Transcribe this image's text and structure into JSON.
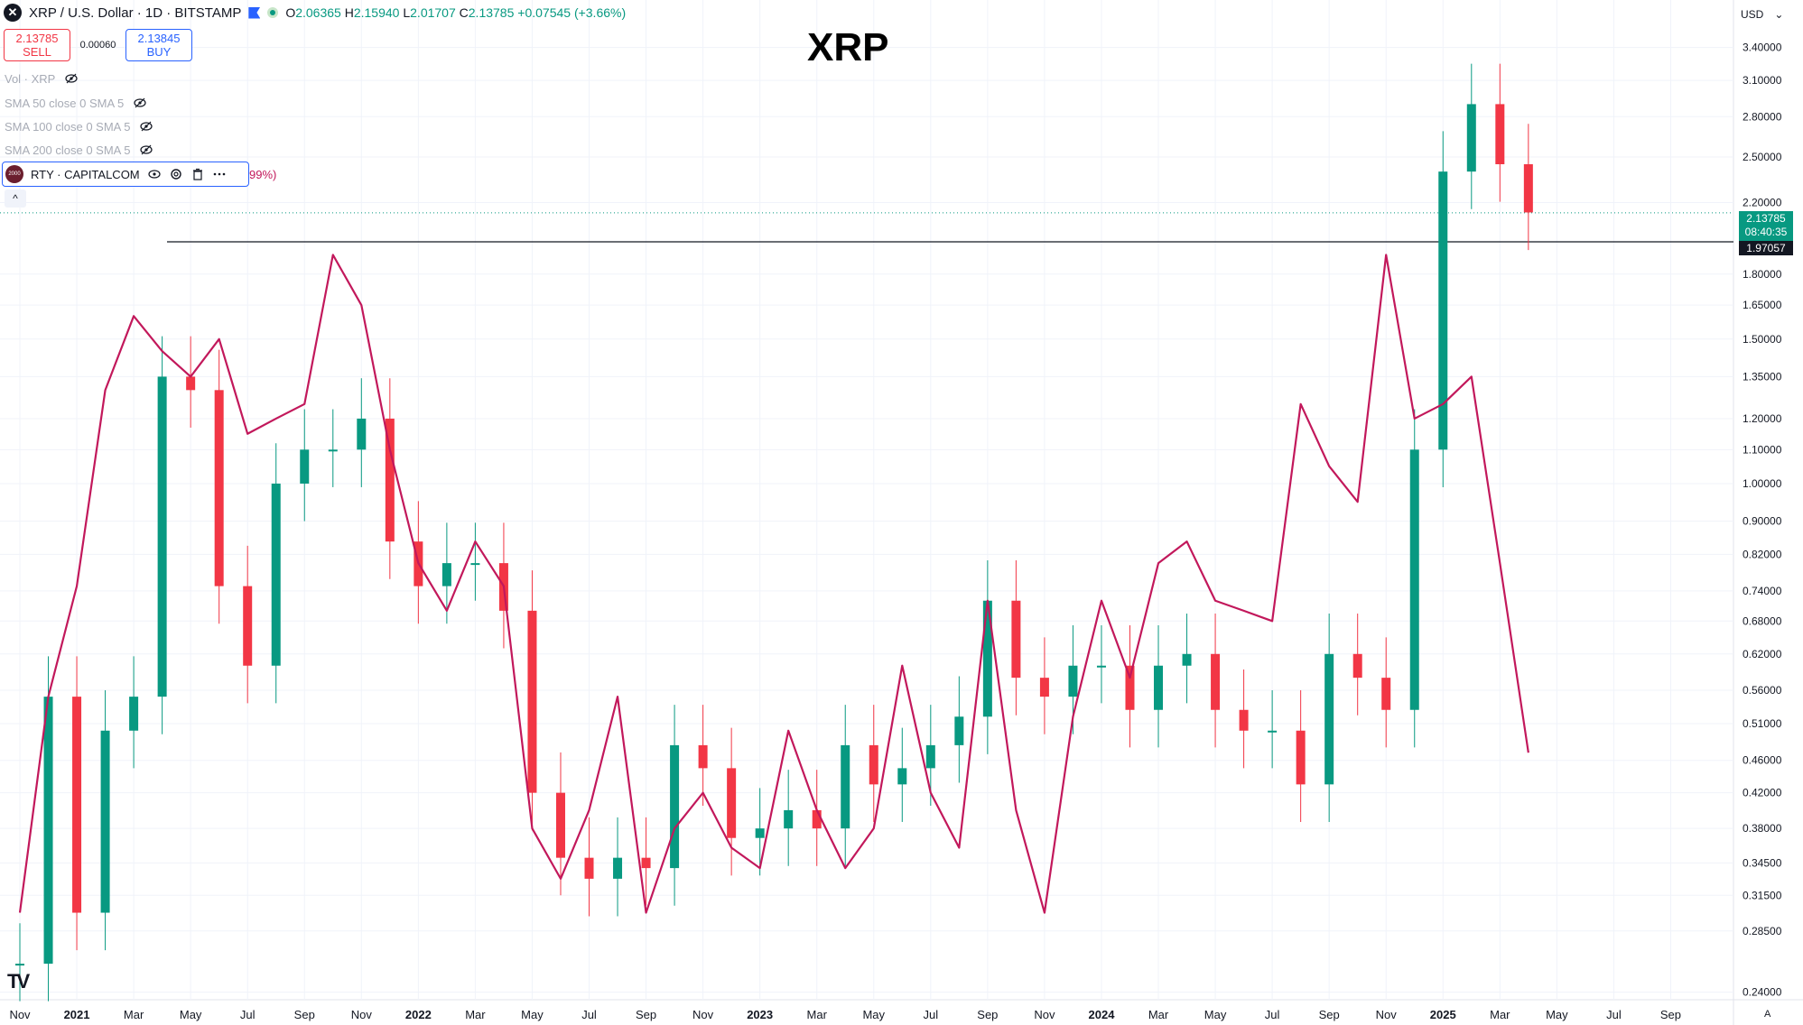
{
  "header": {
    "symbol": "XRP / U.S. Dollar · 1D · BITSTAMP",
    "open_label": "O",
    "open": "2.06365",
    "high_label": "H",
    "high": "2.15940",
    "low_label": "L",
    "low": "2.01707",
    "close_label": "C",
    "close": "2.13785",
    "change": "+0.07545 (+3.66%)"
  },
  "trade": {
    "sell_price": "2.13785",
    "sell_label": "SELL",
    "spread": "0.00060",
    "buy_price": "2.13845",
    "buy_label": "BUY"
  },
  "indicators": [
    {
      "label": "Vol · XRP"
    },
    {
      "label": "SMA 50 close 0 SMA 5"
    },
    {
      "label": "SMA 100 close 0 SMA 5"
    },
    {
      "label": "SMA 200 close 0 SMA 5"
    }
  ],
  "compare": {
    "badge": "2000",
    "label": "RTY · CAPITALCOM",
    "pct_tail": "99%)"
  },
  "currency": "USD",
  "auto_label": "A",
  "price_tags": {
    "last": "2.13785",
    "countdown": "08:40:35",
    "line": "1.97057"
  },
  "colors": {
    "up": "#089981",
    "down": "#f23645",
    "compare": "#c2185b",
    "grid": "#f0f3fa"
  },
  "chart_data": {
    "type": "line",
    "title": "XRP",
    "y_scale": "log",
    "ylim": [
      0.235,
      3.6
    ],
    "y_ticks": [
      "3.40000",
      "3.10000",
      "2.80000",
      "2.50000",
      "2.20000",
      "1.80000",
      "1.65000",
      "1.50000",
      "1.35000",
      "1.20000",
      "1.10000",
      "1.00000",
      "0.90000",
      "0.82000",
      "0.74000",
      "0.68000",
      "0.62000",
      "0.56000",
      "0.51000",
      "0.46000",
      "0.42000",
      "0.38000",
      "0.34500",
      "0.31500",
      "0.28500",
      "0.24000"
    ],
    "x_ticks": [
      "Nov",
      "2021",
      "Mar",
      "May",
      "Jul",
      "Sep",
      "Nov",
      "2022",
      "Mar",
      "May",
      "Jul",
      "Sep",
      "Nov",
      "2023",
      "Mar",
      "May",
      "Jul",
      "Sep",
      "Nov",
      "2024",
      "Mar",
      "May",
      "Jul",
      "Sep",
      "Nov",
      "2025",
      "Mar",
      "May",
      "Jul",
      "Sep"
    ],
    "x_range": [
      "2020-11",
      "2025-10"
    ],
    "horizontal_line": 1.97057,
    "series": [
      {
        "name": "XRP",
        "style": "candles",
        "x": [
          "2020-11",
          "2020-12",
          "2021-01",
          "2021-02",
          "2021-03",
          "2021-04",
          "2021-05",
          "2021-06",
          "2021-07",
          "2021-08",
          "2021-09",
          "2021-10",
          "2021-11",
          "2021-12",
          "2022-01",
          "2022-02",
          "2022-03",
          "2022-04",
          "2022-05",
          "2022-06",
          "2022-07",
          "2022-08",
          "2022-09",
          "2022-10",
          "2022-11",
          "2022-12",
          "2023-01",
          "2023-02",
          "2023-03",
          "2023-04",
          "2023-05",
          "2023-06",
          "2023-07",
          "2023-08",
          "2023-09",
          "2023-10",
          "2023-11",
          "2023-12",
          "2024-01",
          "2024-02",
          "2024-03",
          "2024-04",
          "2024-05",
          "2024-06",
          "2024-07",
          "2024-08",
          "2024-09",
          "2024-10",
          "2024-11",
          "2024-12",
          "2025-01",
          "2025-02",
          "2025-03",
          "2025-04"
        ],
        "values": [
          0.26,
          0.55,
          0.3,
          0.5,
          0.55,
          1.35,
          1.3,
          0.75,
          0.6,
          1.0,
          1.1,
          1.1,
          1.2,
          0.85,
          0.75,
          0.8,
          0.8,
          0.7,
          0.42,
          0.35,
          0.33,
          0.35,
          0.34,
          0.48,
          0.45,
          0.37,
          0.38,
          0.4,
          0.38,
          0.48,
          0.43,
          0.45,
          0.48,
          0.52,
          0.72,
          0.58,
          0.55,
          0.6,
          0.6,
          0.53,
          0.6,
          0.62,
          0.53,
          0.5,
          0.5,
          0.43,
          0.62,
          0.58,
          0.53,
          1.1,
          2.4,
          2.9,
          2.45,
          2.14
        ]
      },
      {
        "name": "RTY · CAPITALCOM",
        "style": "line",
        "x": [
          "2020-11",
          "2020-12",
          "2021-01",
          "2021-02",
          "2021-03",
          "2021-04",
          "2021-05",
          "2021-06",
          "2021-07",
          "2021-08",
          "2021-09",
          "2021-10",
          "2021-11",
          "2021-12",
          "2022-01",
          "2022-02",
          "2022-03",
          "2022-04",
          "2022-05",
          "2022-06",
          "2022-07",
          "2022-08",
          "2022-09",
          "2022-10",
          "2022-11",
          "2022-12",
          "2023-01",
          "2023-02",
          "2023-03",
          "2023-04",
          "2023-05",
          "2023-06",
          "2023-07",
          "2023-08",
          "2023-09",
          "2023-10",
          "2023-11",
          "2023-12",
          "2024-01",
          "2024-02",
          "2024-03",
          "2024-04",
          "2024-05",
          "2024-06",
          "2024-07",
          "2024-08",
          "2024-09",
          "2024-10",
          "2024-11",
          "2024-12",
          "2025-01",
          "2025-02",
          "2025-03",
          "2025-04"
        ],
        "values": [
          0.3,
          0.55,
          0.75,
          1.3,
          1.6,
          1.45,
          1.35,
          1.5,
          1.15,
          1.2,
          1.25,
          1.9,
          1.65,
          1.1,
          0.8,
          0.7,
          0.85,
          0.75,
          0.38,
          0.33,
          0.4,
          0.55,
          0.3,
          0.38,
          0.42,
          0.36,
          0.34,
          0.5,
          0.4,
          0.34,
          0.38,
          0.6,
          0.42,
          0.36,
          0.72,
          0.4,
          0.3,
          0.52,
          0.72,
          0.58,
          0.8,
          0.85,
          0.72,
          0.7,
          0.68,
          1.25,
          1.05,
          0.95,
          1.9,
          1.2,
          1.25,
          1.35,
          0.8,
          0.47
        ]
      }
    ]
  }
}
